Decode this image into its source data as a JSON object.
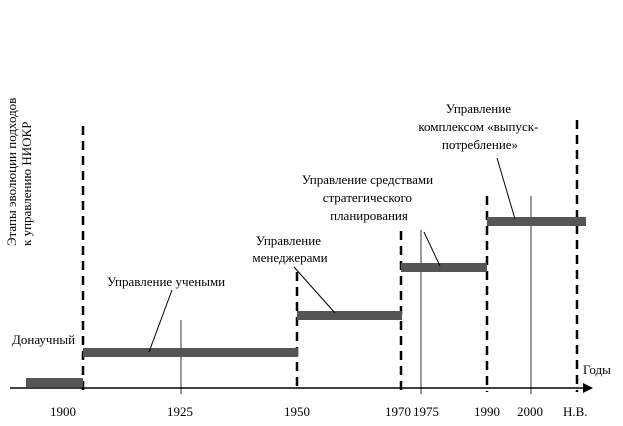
{
  "vertical_title": {
    "line1": "Этапы эволюции подходов",
    "line2": "к управлению НИОКР"
  },
  "axis_unit": "Годы",
  "axis_ticks": [
    "1900",
    "1925",
    "1950",
    "1970",
    "1975",
    "1990",
    "2000",
    "Н.В."
  ],
  "stages": [
    {
      "label_lines": [
        "Донаучный"
      ],
      "start": "до 1900",
      "end": "1900"
    },
    {
      "label_lines": [
        "Управление учеными"
      ],
      "start": "1900",
      "end": "1950"
    },
    {
      "label_lines": [
        "Управление",
        "менеджерами"
      ],
      "start": "1950",
      "end": "1970"
    },
    {
      "label_lines": [
        "Управление средствами",
        "стратегического",
        "планирования"
      ],
      "start": "1970",
      "end": "1990"
    },
    {
      "label_lines": [
        "Управление",
        "комплексом «выпуск-",
        "потребление»"
      ],
      "start": "1990",
      "end": "Н.В."
    }
  ],
  "colors": {
    "bar": "#555555",
    "line": "#000000",
    "background": "#ffffff"
  }
}
